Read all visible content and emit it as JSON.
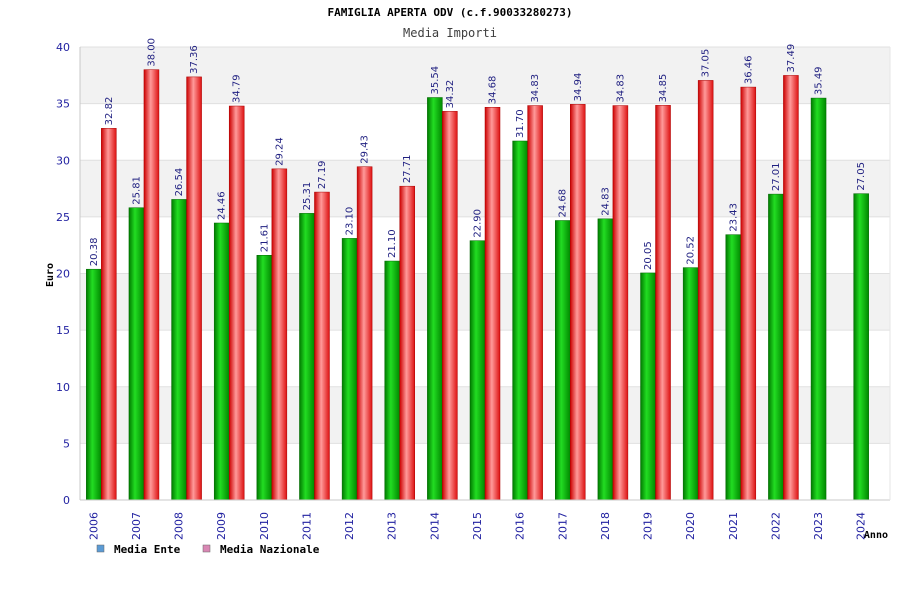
{
  "chart_data": {
    "type": "bar",
    "title": "FAMIGLIA APERTA ODV (c.f.90033280273)",
    "subtitle": "Media Importi",
    "xlabel": "Anno",
    "ylabel": "Euro",
    "ylim": [
      0,
      40
    ],
    "yticks": [
      0,
      5,
      10,
      15,
      20,
      25,
      30,
      35,
      40
    ],
    "categories": [
      "2006",
      "2007",
      "2008",
      "2009",
      "2010",
      "2011",
      "2012",
      "2013",
      "2014",
      "2015",
      "2016",
      "2017",
      "2018",
      "2019",
      "2020",
      "2021",
      "2022",
      "2023",
      "2024"
    ],
    "series": [
      {
        "name": "Media Ente",
        "color": "#00aa00",
        "values": [
          20.38,
          25.81,
          26.54,
          24.46,
          21.61,
          25.31,
          23.1,
          21.1,
          35.54,
          22.9,
          31.7,
          24.68,
          24.83,
          20.05,
          20.52,
          23.43,
          27.01,
          35.49,
          27.05
        ],
        "labels": [
          "20.38",
          "25.81",
          "26.54",
          "24.46",
          "21.61",
          "25.31",
          "23.10",
          "21.10",
          "35.54",
          "22.90",
          "31.70",
          "24.68",
          "24.83",
          "20.05",
          "20.52",
          "23.43",
          "27.01",
          "35.49",
          "27.05"
        ]
      },
      {
        "name": "Media Nazionale",
        "color": "#ee2222",
        "values": [
          32.82,
          38.0,
          37.36,
          34.79,
          29.24,
          27.19,
          29.43,
          27.71,
          34.32,
          34.68,
          34.83,
          34.94,
          34.83,
          34.85,
          37.05,
          36.46,
          37.49,
          null,
          null
        ],
        "labels": [
          "32.82",
          "38.00",
          "37.36",
          "34.79",
          "29.24",
          "27.19",
          "29.43",
          "27.71",
          "34.32",
          "34.68",
          "34.83",
          "34.94",
          "34.83",
          "34.85",
          "37.05",
          "36.46",
          "37.49",
          null,
          null
        ]
      }
    ],
    "legend_position": "bottom-left",
    "legend_swatch_colors": [
      "#5b9bd5",
      "#d987b4"
    ],
    "grid": true,
    "grid_band_color": "#f2f2f2"
  }
}
